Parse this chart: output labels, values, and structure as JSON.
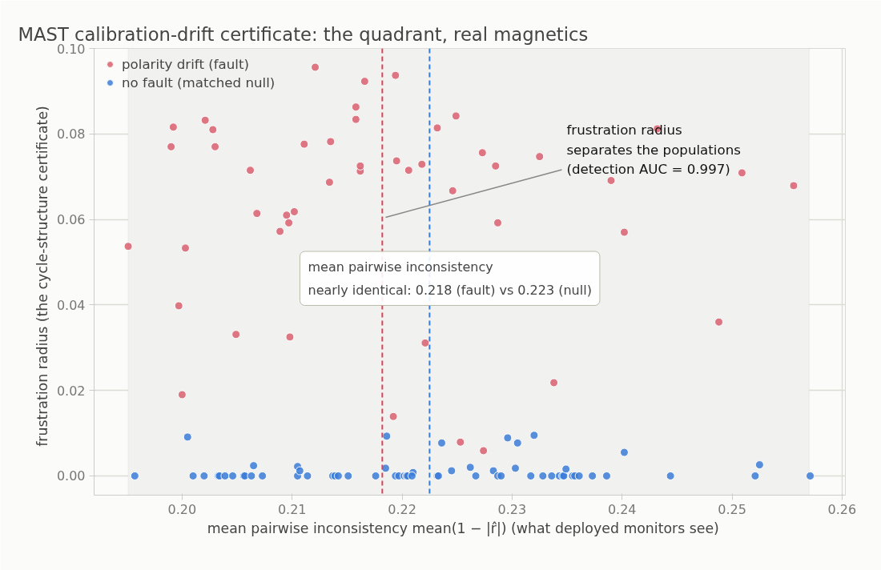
{
  "chart_data": {
    "type": "scatter",
    "title": "MAST calibration-drift certificate: the quadrant, real magnetics",
    "xlabel": "mean pairwise inconsistency  mean(1 − |r̂|)   (what deployed monitors see)",
    "ylabel": "frustration radius   (the cycle-structure certificate)",
    "xlim": [
      0.192,
      0.2603
    ],
    "ylim": [
      -0.0045,
      0.1
    ],
    "xticks": [
      {
        "value": 0.2,
        "label": "0.20"
      },
      {
        "value": 0.21,
        "label": "0.21"
      },
      {
        "value": 0.22,
        "label": "0.22"
      },
      {
        "value": 0.23,
        "label": "0.23"
      },
      {
        "value": 0.24,
        "label": "0.24"
      },
      {
        "value": 0.25,
        "label": "0.25"
      },
      {
        "value": 0.26,
        "label": "0.26"
      }
    ],
    "yticks": [
      {
        "value": 0.0,
        "label": "0.00"
      },
      {
        "value": 0.02,
        "label": "0.02"
      },
      {
        "value": 0.04,
        "label": "0.04"
      },
      {
        "value": 0.06,
        "label": "0.06"
      },
      {
        "value": 0.08,
        "label": "0.08"
      },
      {
        "value": 0.1,
        "label": "0.10"
      }
    ],
    "grid": true,
    "legend": "top left",
    "marker": "circle",
    "series": [
      {
        "name": "polarity drift (fault)",
        "color": "#d9606f",
        "x": [
          0.1951,
          0.199,
          0.1992,
          0.1997,
          0.2,
          0.2003,
          0.2021,
          0.2028,
          0.203,
          0.2049,
          0.2062,
          0.2068,
          0.2089,
          0.2095,
          0.2097,
          0.2102,
          0.2098,
          0.2111,
          0.2121,
          0.2135,
          0.2134,
          0.2158,
          0.2158,
          0.2162,
          0.2162,
          0.2166,
          0.2192,
          0.2194,
          0.2195,
          0.2206,
          0.2218,
          0.2221,
          0.2232,
          0.2246,
          0.2249,
          0.2253,
          0.2273,
          0.2274,
          0.2285,
          0.2287,
          0.2325,
          0.2338,
          0.239,
          0.2402,
          0.2432,
          0.2488,
          0.2509,
          0.2556
        ],
        "values": [
          0.0537,
          0.077,
          0.0816,
          0.0398,
          0.019,
          0.0533,
          0.0832,
          0.081,
          0.077,
          0.0331,
          0.0715,
          0.0614,
          0.0572,
          0.061,
          0.0592,
          0.0618,
          0.0325,
          0.0776,
          0.0956,
          0.0782,
          0.0687,
          0.0863,
          0.0834,
          0.0713,
          0.0725,
          0.0923,
          0.0139,
          0.0937,
          0.0737,
          0.0715,
          0.0729,
          0.0311,
          0.0814,
          0.0667,
          0.0842,
          0.0079,
          0.0756,
          0.0059,
          0.0725,
          0.0592,
          0.0747,
          0.0218,
          0.0691,
          0.057,
          0.0812,
          0.036,
          0.0709,
          0.0679
        ]
      },
      {
        "name": "no fault (matched null)",
        "color": "#3b7dd8",
        "x": [
          0.1957,
          0.2005,
          0.201,
          0.202,
          0.2033,
          0.2034,
          0.2039,
          0.2046,
          0.2056,
          0.2057,
          0.2063,
          0.2065,
          0.2073,
          0.2105,
          0.2105,
          0.2107,
          0.2114,
          0.2137,
          0.2139,
          0.2142,
          0.2151,
          0.2176,
          0.2186,
          0.2185,
          0.2194,
          0.2197,
          0.2202,
          0.2204,
          0.2205,
          0.221,
          0.2209,
          0.2232,
          0.2233,
          0.2236,
          0.2245,
          0.2267,
          0.2262,
          0.2283,
          0.2287,
          0.229,
          0.2296,
          0.2305,
          0.2303,
          0.2317,
          0.232,
          0.2328,
          0.2336,
          0.2343,
          0.2346,
          0.2347,
          0.2349,
          0.2355,
          0.2357,
          0.2361,
          0.2373,
          0.2386,
          0.2402,
          0.2444,
          0.2521,
          0.2525,
          0.2571
        ],
        "values": [
          0,
          0.0091,
          0,
          0,
          0,
          0,
          0,
          0,
          0,
          0,
          0,
          0.0024,
          0,
          0.0022,
          0,
          0.0012,
          0,
          0,
          0,
          0,
          0,
          0,
          0.0093,
          0.0018,
          0,
          0,
          0,
          0,
          0,
          0.0008,
          0,
          0,
          0,
          0.0077,
          0.0012,
          0,
          0.002,
          0.0012,
          0,
          0,
          0.0089,
          0.0077,
          0.0018,
          0,
          0.0095,
          0,
          0,
          0,
          0,
          0,
          0.0016,
          0,
          0,
          0,
          0,
          0,
          0.0055,
          0,
          0,
          0.0026,
          0
        ]
      }
    ],
    "bands": [
      {
        "axis": "x",
        "from": 0.1951,
        "to": 0.257,
        "color": "#f1f1ef"
      }
    ],
    "ref_lines": [
      {
        "axis": "x",
        "value": 0.2182,
        "color": "#d6455a",
        "line_style": "dashed"
      },
      {
        "axis": "x",
        "value": 0.2225,
        "color": "#2f7ee0",
        "line_style": "dashed"
      }
    ],
    "annotations": [
      {
        "text": "frustration radius\nseparates the populations\n(detection AUC = 0.997)",
        "x": 0.2185,
        "y": 0.0605
      },
      "mean pairwise inconsistency\nnearly identical: 0.218 (fault) vs 0.223 (null)"
    ]
  }
}
